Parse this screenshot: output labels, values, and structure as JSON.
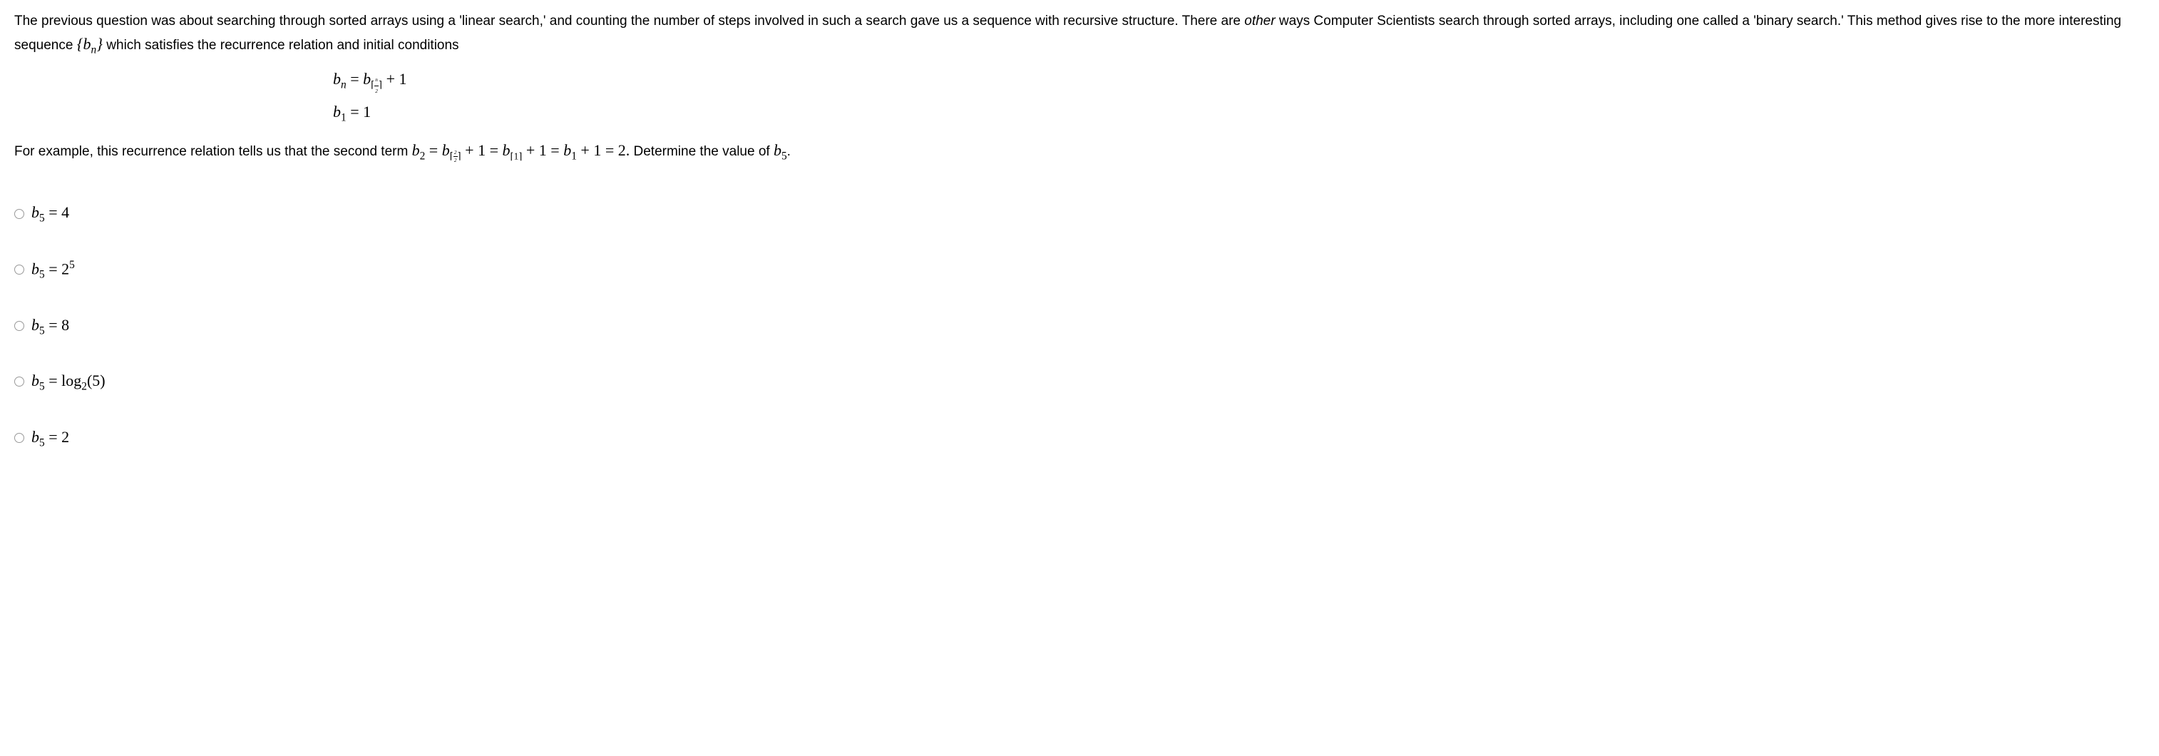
{
  "question": {
    "intro_prefix": "The previous question was about searching through sorted arrays using a 'linear search,' and counting the number of steps involved in such a search gave us a sequence with recursive structure. There are ",
    "intro_italic": "other",
    "intro_suffix": " ways Computer Scientists search through sorted arrays, including one called a 'binary search.' This method gives rise to the more interesting sequence ",
    "seq_notation": "{bₙ}",
    "intro_tail": " which satisfies the recurrence relation and initial conditions",
    "recurrence_lhs": "bₙ",
    "recurrence_eq": " = ",
    "initial_lhs": "b₁",
    "initial_eq": " = 1",
    "followup_prefix": "For example, this recurrence relation tells us that the second term ",
    "followup_suffix": " Determine the value of ",
    "b5": "b₅",
    "period": "."
  },
  "options": [
    {
      "text_a": "b",
      "sub": "5",
      "text_b": " = 4"
    },
    {
      "text_a": "b",
      "sub": "5",
      "text_b": " = 2",
      "sup": "5"
    },
    {
      "text_a": "b",
      "sub": "5",
      "text_b": " = 8"
    },
    {
      "text_a": "b",
      "sub": "5",
      "text_b": " = log",
      "logsub": "2",
      "arg": "(5)"
    },
    {
      "text_a": "b",
      "sub": "5",
      "text_b": " = 2"
    }
  ],
  "styles": {
    "text_color": "#000000",
    "background_color": "#ffffff",
    "body_font_size": 19,
    "math_font_size": 22,
    "radio_border_color": "#999999"
  }
}
